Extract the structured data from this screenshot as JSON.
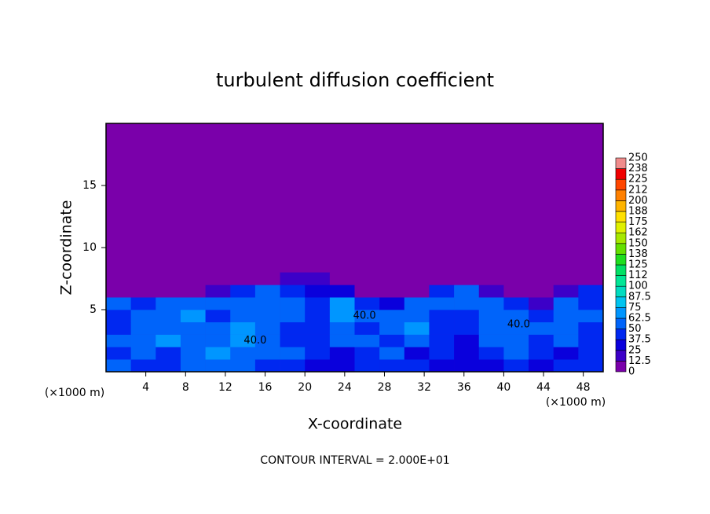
{
  "chart_data": {
    "type": "heatmap",
    "title": "turbulent diffusion coefficient",
    "x_label": "X-coordinate",
    "y_label": "Z-coordinate",
    "x_unit": "(×1000 m)",
    "y_unit": "(×1000 m)",
    "footnote": "CONTOUR INTERVAL = 2.000E+01",
    "xlim": [
      0,
      50
    ],
    "ylim": [
      0,
      20
    ],
    "xticks": [
      4,
      8,
      12,
      16,
      20,
      24,
      28,
      32,
      36,
      40,
      44,
      48
    ],
    "yticks": [
      5,
      10,
      15
    ],
    "x": [
      1.25,
      3.75,
      6.25,
      8.75,
      11.25,
      13.75,
      16.25,
      18.75,
      21.25,
      23.75,
      26.25,
      28.75,
      31.25,
      33.75,
      36.25,
      38.75,
      41.25,
      43.75,
      46.25,
      48.75
    ],
    "y": [
      0.5,
      1.5,
      2.5,
      3.5,
      4.5,
      5.5,
      6.5,
      7.5
    ],
    "values": [
      [
        50,
        40,
        45,
        55,
        60,
        50,
        45,
        40,
        35,
        30,
        40,
        45,
        40,
        35,
        30,
        35,
        45,
        30,
        40,
        45
      ],
      [
        45,
        60,
        40,
        50,
        65,
        60,
        55,
        50,
        40,
        35,
        45,
        55,
        35,
        40,
        35,
        40,
        50,
        40,
        35,
        45
      ],
      [
        55,
        50,
        65,
        60,
        50,
        70,
        60,
        45,
        40,
        60,
        50,
        45,
        50,
        40,
        35,
        55,
        60,
        45,
        50,
        40
      ],
      [
        40,
        55,
        60,
        50,
        55,
        65,
        50,
        40,
        45,
        55,
        40,
        60,
        65,
        40,
        40,
        60,
        50,
        60,
        55,
        45
      ],
      [
        45,
        60,
        55,
        65,
        45,
        50,
        60,
        55,
        45,
        70,
        50,
        55,
        60,
        45,
        40,
        50,
        60,
        45,
        60,
        50
      ],
      [
        50,
        45,
        60,
        50,
        60,
        55,
        50,
        60,
        45,
        65,
        40,
        35,
        55,
        60,
        50,
        60,
        40,
        20,
        50,
        45
      ],
      [
        10,
        5,
        5,
        10,
        15,
        40,
        55,
        45,
        30,
        35,
        10,
        5,
        5,
        45,
        50,
        15,
        5,
        0,
        20,
        40
      ],
      [
        0,
        0,
        0,
        0,
        0,
        0,
        5,
        20,
        15,
        10,
        0,
        0,
        0,
        0,
        5,
        0,
        0,
        0,
        0,
        10
      ]
    ],
    "colorbar_ticks": [
      0,
      12.5,
      25,
      37.5,
      50,
      62.5,
      75,
      87.5,
      100,
      {
        "value": 112.5,
        "label": "112"
      },
      125,
      {
        "value": 137.5,
        "label": "138"
      },
      150,
      {
        "value": 162.5,
        "label": "162"
      },
      175,
      {
        "value": 187.5,
        "label": "188"
      },
      200,
      {
        "value": 212.5,
        "label": "212"
      },
      225,
      {
        "value": 237.5,
        "label": "238"
      },
      250
    ],
    "colors": [
      "#7a00aa",
      "#3c00c8",
      "#0a00dc",
      "#0028f0",
      "#0064fa",
      "#0096ff",
      "#00c4f0",
      "#00dcc0",
      "#00e696",
      "#00e064",
      "#1ede1e",
      "#64e000",
      "#a6e800",
      "#e0f000",
      "#ffe000",
      "#ffb400",
      "#ff8000",
      "#ff4600",
      "#f00000",
      "#f08c8c"
    ],
    "annotations": [
      {
        "text": "40.0",
        "x": 15,
        "y": 2.5
      },
      {
        "text": "40.0",
        "x": 26,
        "y": 4.5
      },
      {
        "text": "40.0",
        "x": 41.5,
        "y": 3.8
      }
    ]
  }
}
